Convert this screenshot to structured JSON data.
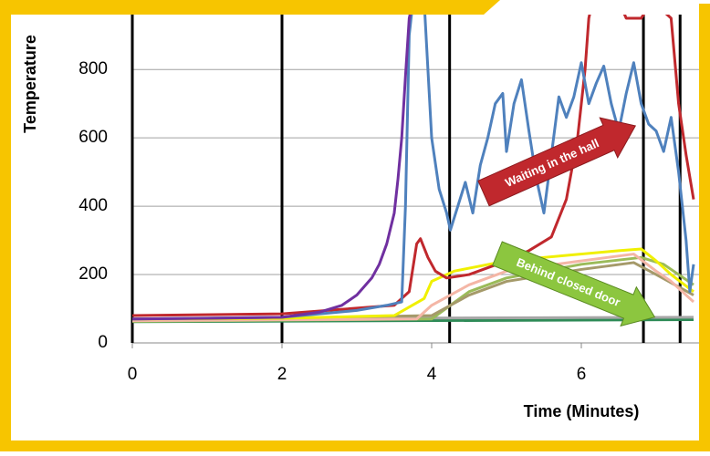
{
  "chart_data": {
    "type": "line",
    "y_label": "Temperature",
    "x_label": "Time (Minutes)",
    "xlim": [
      0,
      7.5
    ],
    "ylim": [
      0,
      950
    ],
    "xticks": [
      0,
      2,
      4,
      6
    ],
    "yticks": [
      0,
      200,
      400,
      600,
      800
    ],
    "grid": true,
    "event_lines": [
      0,
      2,
      4.24,
      6.83,
      7.32
    ],
    "annotations": [
      "Waiting in the hall",
      "Behind closed door"
    ],
    "series": [
      {
        "color": "#7030a0",
        "x": [
          0,
          1,
          2,
          2.5,
          2.8,
          3.0,
          3.2,
          3.3,
          3.4,
          3.5,
          3.55,
          3.6,
          3.65,
          3.7,
          3.75
        ],
        "values": [
          70,
          72,
          75,
          90,
          110,
          140,
          190,
          230,
          290,
          380,
          480,
          600,
          780,
          950,
          1000
        ]
      },
      {
        "color": "#4f81bd",
        "x": [
          0,
          2,
          3.0,
          3.4,
          3.6,
          3.65,
          3.7,
          3.75,
          3.9,
          3.95,
          4.0,
          4.1,
          4.2,
          4.25,
          4.35,
          4.45,
          4.55,
          4.65,
          4.75,
          4.85,
          4.95,
          5.0,
          5.1,
          5.2,
          5.3,
          5.4,
          5.5,
          5.6,
          5.7,
          5.8,
          5.9,
          6.0,
          6.1,
          6.2,
          6.3,
          6.4,
          6.5,
          6.6,
          6.7,
          6.8,
          6.9,
          7.0,
          7.1,
          7.2,
          7.25,
          7.3,
          7.35,
          7.4,
          7.45,
          7.5
        ],
        "values": [
          70,
          75,
          95,
          110,
          120,
          400,
          900,
          1000,
          1000,
          800,
          600,
          450,
          380,
          330,
          400,
          470,
          380,
          520,
          600,
          700,
          730,
          560,
          700,
          770,
          620,
          480,
          380,
          550,
          720,
          660,
          720,
          820,
          700,
          760,
          810,
          700,
          620,
          730,
          820,
          700,
          640,
          620,
          560,
          660,
          580,
          500,
          400,
          300,
          150,
          230
        ]
      },
      {
        "color": "#c0282d",
        "x": [
          0,
          2,
          3.5,
          3.7,
          3.8,
          3.85,
          3.95,
          4.05,
          4.2,
          4.5,
          5.0,
          5.3,
          5.6,
          5.8,
          5.95,
          6.05,
          6.1,
          6.15,
          6.5,
          6.6,
          6.8,
          6.95,
          7.2,
          7.3,
          7.4,
          7.5
        ],
        "values": [
          80,
          85,
          110,
          150,
          290,
          305,
          250,
          210,
          190,
          200,
          240,
          270,
          310,
          420,
          600,
          800,
          950,
          1000,
          1000,
          950,
          950,
          1000,
          950,
          700,
          550,
          420
        ]
      },
      {
        "color": "#f0f000",
        "x": [
          0,
          2,
          3.5,
          3.9,
          4.0,
          4.3,
          5.0,
          6.0,
          6.5,
          6.8,
          7.0,
          7.2,
          7.5
        ],
        "values": [
          70,
          72,
          80,
          130,
          180,
          210,
          240,
          260,
          270,
          275,
          240,
          200,
          150
        ]
      },
      {
        "color": "#f4b6a6",
        "x": [
          0,
          3.8,
          4.0,
          4.5,
          5.0,
          6.0,
          6.7,
          7.0,
          7.2,
          7.5
        ],
        "values": [
          65,
          70,
          110,
          170,
          210,
          240,
          260,
          210,
          180,
          120
        ]
      },
      {
        "color": "#a59a6a",
        "x": [
          0,
          4.0,
          4.5,
          5.0,
          6.0,
          6.7,
          7.0,
          7.5
        ],
        "values": [
          65,
          80,
          140,
          180,
          215,
          235,
          200,
          140
        ]
      },
      {
        "color": "#9bbb59",
        "x": [
          0,
          4.0,
          4.5,
          5.0,
          6.0,
          6.8,
          7.1,
          7.5
        ],
        "values": [
          63,
          70,
          150,
          190,
          230,
          250,
          230,
          170
        ]
      },
      {
        "color": "#a6a6a6",
        "x": [
          0,
          7.5
        ],
        "values": [
          70,
          75
        ]
      },
      {
        "color": "#2e8b57",
        "x": [
          0,
          7.5
        ],
        "values": [
          62,
          68
        ]
      }
    ]
  }
}
